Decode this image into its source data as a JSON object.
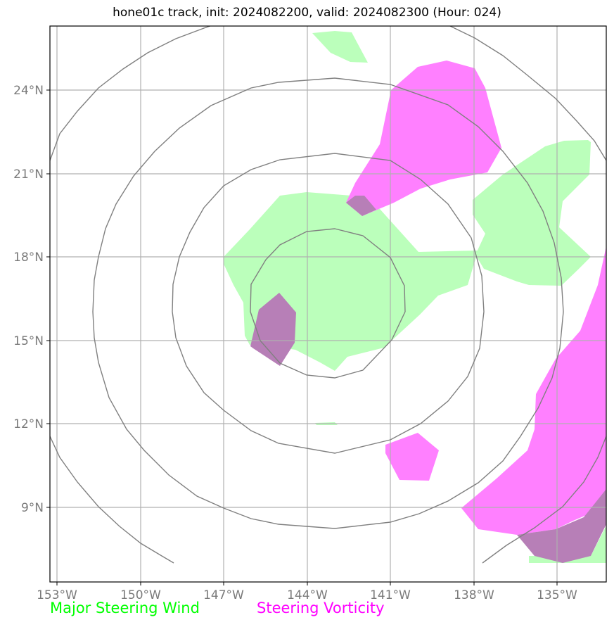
{
  "title": "hone01c track, init: 2024082200, valid: 2024082300 (Hour: 024)",
  "map": {
    "lon_ticks": [
      "153°W",
      "150°W",
      "147°W",
      "144°W",
      "141°W",
      "138°W",
      "135°W"
    ],
    "lat_ticks": [
      "24°N",
      "21°N",
      "18°N",
      "15°N",
      "12°N",
      "9°N"
    ],
    "lon_range": [
      "153.2°W",
      "133.2°W"
    ],
    "lat_range": [
      "6.7°N",
      "26.7°N"
    ],
    "range_ring_center": "142.9°W, 17°N",
    "range_rings": 5,
    "grid": true
  },
  "legend": {
    "wind": {
      "label": "Major Steering Wind",
      "color": "#00ff00"
    },
    "vorticity": {
      "label": "Steering Vorticity",
      "color": "#ff00ff"
    }
  },
  "colors": {
    "wind_fill": "#bbffbb",
    "vorticity_fill": "#ff80ff",
    "overlap_fill": "#b77fb7",
    "rings": "#808080",
    "grid": "#b0b0b0"
  }
}
